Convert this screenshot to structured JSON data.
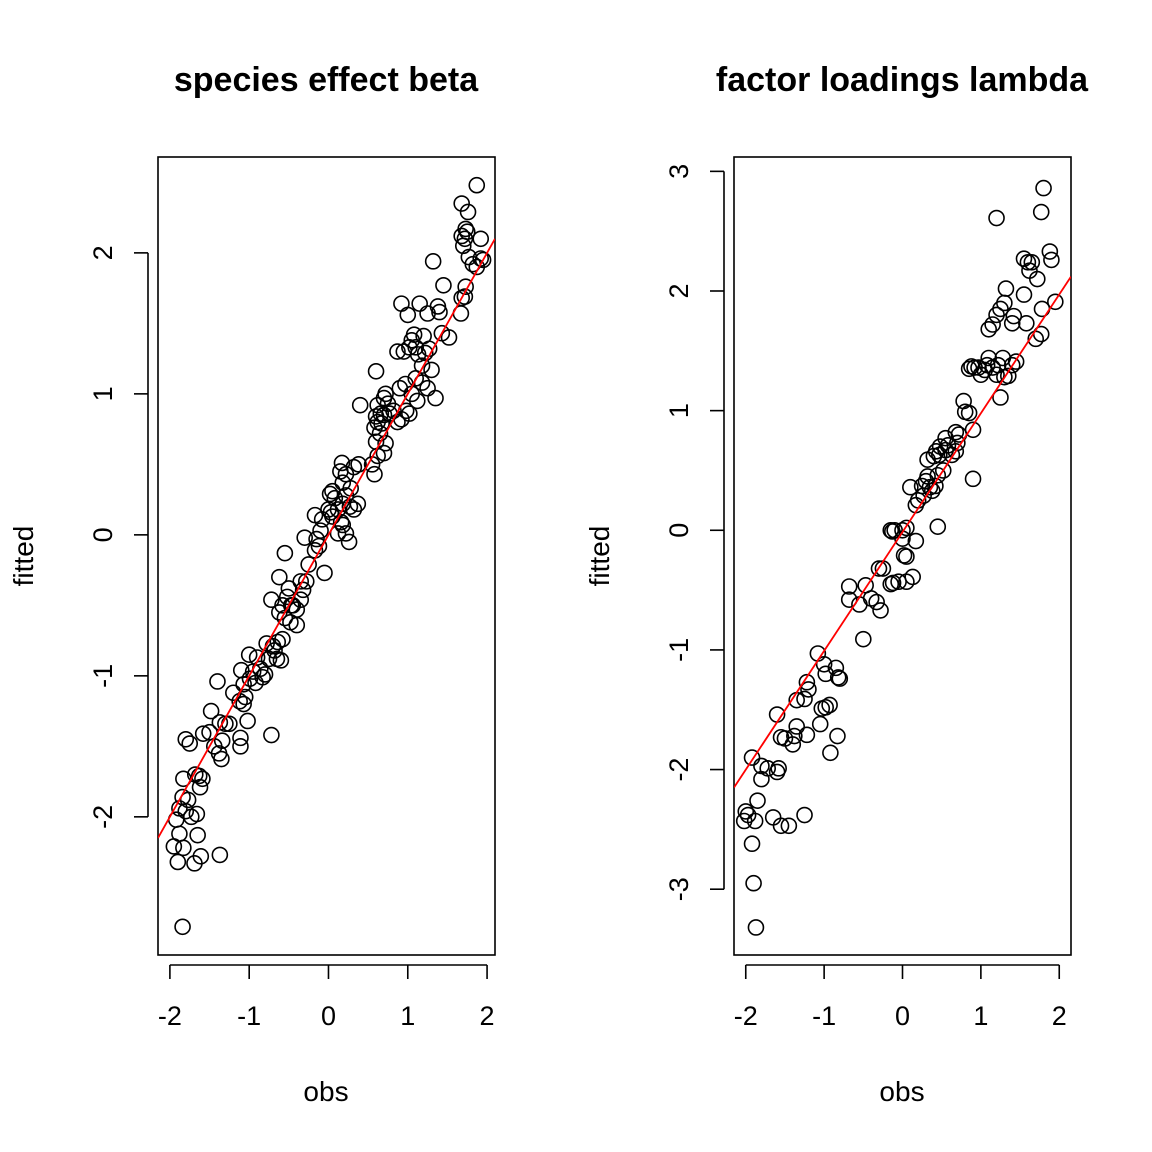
{
  "chart_data": [
    {
      "type": "scatter",
      "title": "species effect beta",
      "xlabel": "obs",
      "ylabel": "fitted",
      "xlim": [
        -2.15,
        2.1
      ],
      "ylim": [
        -2.98,
        2.68
      ],
      "xticks": [
        -2,
        -1,
        0,
        1,
        2
      ],
      "yticks": [
        -2,
        -1,
        0,
        1,
        2
      ],
      "xtick_labels": [
        "-2",
        "-1",
        "0",
        "1",
        "2"
      ],
      "ytick_labels": [
        "-2",
        "-1",
        "0",
        "1",
        "2"
      ],
      "grid": false,
      "colors": {
        "points": "#000000",
        "fit_line": "#ff0000"
      },
      "fit_line": {
        "x": [
          -2.15,
          2.1
        ],
        "y": [
          -2.15,
          2.1
        ]
      },
      "points": [
        [
          -1.84,
          -2.78
        ],
        [
          -1.9,
          -2.32
        ],
        [
          -1.83,
          -2.22
        ],
        [
          -1.95,
          -2.21
        ],
        [
          -1.88,
          -2.12
        ],
        [
          -1.69,
          -2.33
        ],
        [
          -1.61,
          -2.28
        ],
        [
          -1.37,
          -2.27
        ],
        [
          -1.65,
          -2.13
        ],
        [
          -1.92,
          -2.02
        ],
        [
          -1.88,
          -1.94
        ],
        [
          -1.8,
          -1.96
        ],
        [
          -1.77,
          -1.88
        ],
        [
          -1.84,
          -1.86
        ],
        [
          -1.73,
          -2.0
        ],
        [
          -1.66,
          -1.98
        ],
        [
          -1.83,
          -1.73
        ],
        [
          -1.68,
          -1.7
        ],
        [
          -1.62,
          -1.79
        ],
        [
          -1.59,
          -1.73
        ],
        [
          -1.63,
          -1.71
        ],
        [
          -1.8,
          -1.45
        ],
        [
          -1.75,
          -1.48
        ],
        [
          -1.58,
          -1.41
        ],
        [
          -1.5,
          -1.4
        ],
        [
          -1.44,
          -1.5
        ],
        [
          -1.38,
          -1.55
        ],
        [
          -1.35,
          -1.59
        ],
        [
          -1.34,
          -1.46
        ],
        [
          -1.37,
          -1.33
        ],
        [
          -1.3,
          -1.34
        ],
        [
          -1.25,
          -1.34
        ],
        [
          -1.48,
          -1.25
        ],
        [
          -1.4,
          -1.04
        ],
        [
          -1.2,
          -1.12
        ],
        [
          -1.11,
          -1.44
        ],
        [
          -1.11,
          -1.5
        ],
        [
          -1.02,
          -1.32
        ],
        [
          -0.72,
          -1.42
        ],
        [
          -1.12,
          -1.18
        ],
        [
          -1.07,
          -1.2
        ],
        [
          -1.05,
          -1.15
        ],
        [
          -1.07,
          -1.06
        ],
        [
          -1.1,
          -0.96
        ],
        [
          -0.99,
          -1.02
        ],
        [
          -0.92,
          -1.05
        ],
        [
          -0.95,
          -0.97
        ],
        [
          -0.9,
          -0.87
        ],
        [
          -1.0,
          -0.85
        ],
        [
          -0.86,
          -0.95
        ],
        [
          -0.83,
          -1.01
        ],
        [
          -0.8,
          -0.99
        ],
        [
          -0.75,
          -0.88
        ],
        [
          -0.7,
          -0.79
        ],
        [
          -0.65,
          -0.88
        ],
        [
          -0.6,
          -0.89
        ],
        [
          -0.68,
          -0.82
        ],
        [
          -0.78,
          -0.77
        ],
        [
          -0.64,
          -0.76
        ],
        [
          -0.58,
          -0.74
        ],
        [
          -0.55,
          -0.59
        ],
        [
          -0.62,
          -0.55
        ],
        [
          -0.58,
          -0.5
        ],
        [
          -0.52,
          -0.44
        ],
        [
          -0.45,
          -0.5
        ],
        [
          -0.4,
          -0.53
        ],
        [
          -0.35,
          -0.46
        ],
        [
          -0.48,
          -0.62
        ],
        [
          -0.4,
          -0.64
        ],
        [
          -0.32,
          -0.39
        ],
        [
          -0.35,
          -0.33
        ],
        [
          -0.28,
          -0.33
        ],
        [
          -0.72,
          -0.46
        ],
        [
          -0.62,
          -0.3
        ],
        [
          -0.55,
          -0.13
        ],
        [
          -0.5,
          -0.38
        ],
        [
          -0.47,
          -0.5
        ],
        [
          -0.3,
          -0.02
        ],
        [
          -0.25,
          -0.21
        ],
        [
          -0.17,
          -0.11
        ],
        [
          -0.15,
          -0.03
        ],
        [
          -0.12,
          -0.08
        ],
        [
          -0.05,
          -0.27
        ],
        [
          -0.1,
          0.03
        ],
        [
          -0.17,
          0.14
        ],
        [
          -0.08,
          0.11
        ],
        [
          0.03,
          0.16
        ],
        [
          0.05,
          0.13
        ],
        [
          0.0,
          0.18
        ],
        [
          0.02,
          0.29
        ],
        [
          0.05,
          0.31
        ],
        [
          0.08,
          0.26
        ],
        [
          0.12,
          0.18
        ],
        [
          0.16,
          0.09
        ],
        [
          0.12,
          0.01
        ],
        [
          0.18,
          0.07
        ],
        [
          0.22,
          0.01
        ],
        [
          0.26,
          -0.05
        ],
        [
          0.18,
          0.22
        ],
        [
          0.27,
          0.2
        ],
        [
          0.32,
          0.18
        ],
        [
          0.37,
          0.22
        ],
        [
          0.22,
          0.28
        ],
        [
          0.28,
          0.33
        ],
        [
          0.18,
          0.37
        ],
        [
          0.15,
          0.45
        ],
        [
          0.22,
          0.43
        ],
        [
          0.32,
          0.48
        ],
        [
          0.38,
          0.5
        ],
        [
          0.17,
          0.51
        ],
        [
          0.4,
          0.92
        ],
        [
          0.58,
          0.43
        ],
        [
          0.55,
          0.5
        ],
        [
          0.62,
          0.56
        ],
        [
          0.7,
          0.58
        ],
        [
          0.6,
          0.66
        ],
        [
          0.65,
          0.72
        ],
        [
          0.72,
          0.65
        ],
        [
          0.58,
          0.76
        ],
        [
          0.62,
          0.8
        ],
        [
          0.67,
          0.79
        ],
        [
          0.6,
          0.84
        ],
        [
          0.66,
          0.86
        ],
        [
          0.7,
          0.85
        ],
        [
          0.77,
          0.86
        ],
        [
          0.62,
          0.92
        ],
        [
          0.7,
          0.97
        ],
        [
          0.75,
          0.93
        ],
        [
          0.72,
          1.0
        ],
        [
          0.82,
          0.88
        ],
        [
          0.87,
          0.8
        ],
        [
          0.92,
          0.82
        ],
        [
          0.98,
          0.88
        ],
        [
          1.02,
          0.86
        ],
        [
          1.12,
          0.95
        ],
        [
          0.9,
          1.04
        ],
        [
          0.97,
          1.07
        ],
        [
          1.05,
          1.0
        ],
        [
          1.1,
          1.11
        ],
        [
          1.18,
          1.08
        ],
        [
          1.25,
          1.04
        ],
        [
          1.35,
          0.97
        ],
        [
          0.6,
          1.16
        ],
        [
          0.87,
          1.3
        ],
        [
          0.95,
          1.3
        ],
        [
          1.02,
          1.33
        ],
        [
          1.05,
          1.38
        ],
        [
          1.08,
          1.42
        ],
        [
          1.1,
          1.33
        ],
        [
          1.13,
          1.28
        ],
        [
          1.18,
          1.2
        ],
        [
          1.22,
          1.29
        ],
        [
          1.27,
          1.32
        ],
        [
          1.3,
          1.17
        ],
        [
          1.2,
          1.41
        ],
        [
          1.4,
          1.58
        ],
        [
          1.52,
          1.4
        ],
        [
          1.43,
          1.43
        ],
        [
          0.92,
          1.64
        ],
        [
          1.0,
          1.56
        ],
        [
          1.15,
          1.64
        ],
        [
          1.25,
          1.57
        ],
        [
          1.38,
          1.62
        ],
        [
          1.32,
          1.94
        ],
        [
          1.45,
          1.77
        ],
        [
          1.67,
          1.57
        ],
        [
          1.68,
          1.68
        ],
        [
          1.72,
          1.69
        ],
        [
          1.73,
          1.76
        ],
        [
          1.7,
          2.05
        ],
        [
          1.75,
          2.15
        ],
        [
          1.72,
          2.1
        ],
        [
          1.68,
          2.12
        ],
        [
          1.73,
          2.17
        ],
        [
          1.77,
          1.97
        ],
        [
          1.82,
          1.92
        ],
        [
          1.87,
          1.9
        ],
        [
          1.92,
          1.96
        ],
        [
          1.95,
          1.95
        ],
        [
          1.92,
          2.1
        ],
        [
          1.76,
          2.29
        ],
        [
          1.68,
          2.35
        ],
        [
          1.87,
          2.48
        ]
      ]
    },
    {
      "type": "scatter",
      "title": "factor loadings lambda",
      "xlabel": "obs",
      "ylabel": "fitted",
      "xlim": [
        -2.15,
        2.15
      ],
      "ylim": [
        -3.55,
        3.12
      ],
      "xticks": [
        -2,
        -1,
        0,
        1,
        2
      ],
      "yticks": [
        -3,
        -2,
        -1,
        0,
        1,
        2,
        3
      ],
      "xtick_labels": [
        "-2",
        "-1",
        "0",
        "1",
        "2"
      ],
      "ytick_labels": [
        "-3",
        "-2",
        "-1",
        "0",
        "1",
        "2",
        "3"
      ],
      "grid": false,
      "colors": {
        "points": "#000000",
        "fit_line": "#ff0000"
      },
      "fit_line": {
        "x": [
          -2.15,
          2.15
        ],
        "y": [
          -2.15,
          2.12
        ]
      },
      "points": [
        [
          -1.87,
          -3.32
        ],
        [
          -1.9,
          -2.95
        ],
        [
          -1.92,
          -2.62
        ],
        [
          -2.0,
          -2.35
        ],
        [
          -2.02,
          -2.43
        ],
        [
          -1.97,
          -2.38
        ],
        [
          -1.88,
          -2.43
        ],
        [
          -1.85,
          -2.26
        ],
        [
          -1.65,
          -2.4
        ],
        [
          -1.55,
          -2.47
        ],
        [
          -1.45,
          -2.47
        ],
        [
          -1.25,
          -2.38
        ],
        [
          -1.92,
          -1.9
        ],
        [
          -1.8,
          -1.97
        ],
        [
          -1.72,
          -1.99
        ],
        [
          -1.8,
          -2.08
        ],
        [
          -1.6,
          -2.02
        ],
        [
          -1.58,
          -1.99
        ],
        [
          -1.55,
          -1.73
        ],
        [
          -1.5,
          -1.74
        ],
        [
          -1.4,
          -1.79
        ],
        [
          -1.38,
          -1.72
        ],
        [
          -1.35,
          -1.64
        ],
        [
          -1.22,
          -1.71
        ],
        [
          -1.6,
          -1.54
        ],
        [
          -1.35,
          -1.42
        ],
        [
          -1.25,
          -1.41
        ],
        [
          -1.2,
          -1.33
        ],
        [
          -1.22,
          -1.27
        ],
        [
          -1.05,
          -1.62
        ],
        [
          -1.03,
          -1.49
        ],
        [
          -0.98,
          -1.48
        ],
        [
          -0.93,
          -1.46
        ],
        [
          -0.92,
          -1.86
        ],
        [
          -0.83,
          -1.72
        ],
        [
          -1.08,
          -1.03
        ],
        [
          -1.0,
          -1.12
        ],
        [
          -0.98,
          -1.2
        ],
        [
          -0.85,
          -1.15
        ],
        [
          -0.82,
          -1.23
        ],
        [
          -0.8,
          -1.24
        ],
        [
          -0.5,
          -0.91
        ],
        [
          -0.68,
          -0.58
        ],
        [
          -0.68,
          -0.47
        ],
        [
          -0.55,
          -0.62
        ],
        [
          -0.47,
          -0.46
        ],
        [
          -0.4,
          -0.57
        ],
        [
          -0.33,
          -0.6
        ],
        [
          -0.28,
          -0.67
        ],
        [
          -0.3,
          -0.32
        ],
        [
          -0.25,
          -0.32
        ],
        [
          -0.15,
          -0.45
        ],
        [
          -0.12,
          -0.44
        ],
        [
          -0.05,
          -0.43
        ],
        [
          0.05,
          -0.43
        ],
        [
          0.13,
          -0.39
        ],
        [
          0.17,
          -0.09
        ],
        [
          0.02,
          -0.21
        ],
        [
          0.05,
          -0.22
        ],
        [
          -0.15,
          0.0
        ],
        [
          -0.13,
          -0.01
        ],
        [
          -0.1,
          0.0
        ],
        [
          0.0,
          0.0
        ],
        [
          0.0,
          -0.07
        ],
        [
          0.05,
          0.02
        ],
        [
          0.17,
          0.21
        ],
        [
          0.2,
          0.25
        ],
        [
          0.27,
          0.29
        ],
        [
          0.25,
          0.37
        ],
        [
          0.3,
          0.41
        ],
        [
          0.32,
          0.45
        ],
        [
          0.38,
          0.33
        ],
        [
          0.42,
          0.37
        ],
        [
          0.45,
          0.46
        ],
        [
          0.52,
          0.5
        ],
        [
          0.4,
          0.62
        ],
        [
          0.43,
          0.66
        ],
        [
          0.47,
          0.63
        ],
        [
          0.48,
          0.7
        ],
        [
          0.55,
          0.67
        ],
        [
          0.58,
          0.71
        ],
        [
          0.55,
          0.77
        ],
        [
          0.63,
          0.63
        ],
        [
          0.68,
          0.66
        ],
        [
          0.7,
          0.73
        ],
        [
          0.72,
          0.8
        ],
        [
          0.68,
          0.82
        ],
        [
          0.78,
          1.08
        ],
        [
          0.8,
          0.99
        ],
        [
          0.85,
          0.98
        ],
        [
          0.9,
          0.84
        ],
        [
          0.9,
          0.43
        ],
        [
          0.45,
          0.03
        ],
        [
          0.35,
          0.36
        ],
        [
          0.1,
          0.36
        ],
        [
          0.32,
          0.59
        ],
        [
          0.85,
          1.35
        ],
        [
          0.88,
          1.37
        ],
        [
          0.92,
          1.36
        ],
        [
          0.97,
          1.36
        ],
        [
          1.0,
          1.3
        ],
        [
          1.05,
          1.34
        ],
        [
          1.08,
          1.38
        ],
        [
          1.1,
          1.44
        ],
        [
          1.15,
          1.36
        ],
        [
          1.2,
          1.3
        ],
        [
          1.22,
          1.38
        ],
        [
          1.28,
          1.44
        ],
        [
          1.3,
          1.28
        ],
        [
          1.35,
          1.29
        ],
        [
          1.4,
          1.38
        ],
        [
          1.45,
          1.41
        ],
        [
          1.25,
          1.11
        ],
        [
          1.1,
          1.68
        ],
        [
          1.15,
          1.72
        ],
        [
          1.2,
          1.8
        ],
        [
          1.25,
          1.85
        ],
        [
          1.3,
          1.9
        ],
        [
          1.32,
          2.02
        ],
        [
          1.4,
          1.73
        ],
        [
          1.42,
          1.79
        ],
        [
          1.58,
          1.73
        ],
        [
          1.55,
          1.97
        ],
        [
          1.7,
          1.6
        ],
        [
          1.77,
          1.64
        ],
        [
          1.78,
          1.85
        ],
        [
          1.9,
          2.26
        ],
        [
          1.95,
          1.91
        ],
        [
          1.55,
          2.27
        ],
        [
          1.6,
          2.24
        ],
        [
          1.62,
          2.17
        ],
        [
          1.65,
          2.24
        ],
        [
          1.72,
          2.1
        ],
        [
          1.88,
          2.33
        ],
        [
          1.2,
          2.61
        ],
        [
          1.77,
          2.66
        ],
        [
          1.8,
          2.86
        ]
      ]
    }
  ]
}
